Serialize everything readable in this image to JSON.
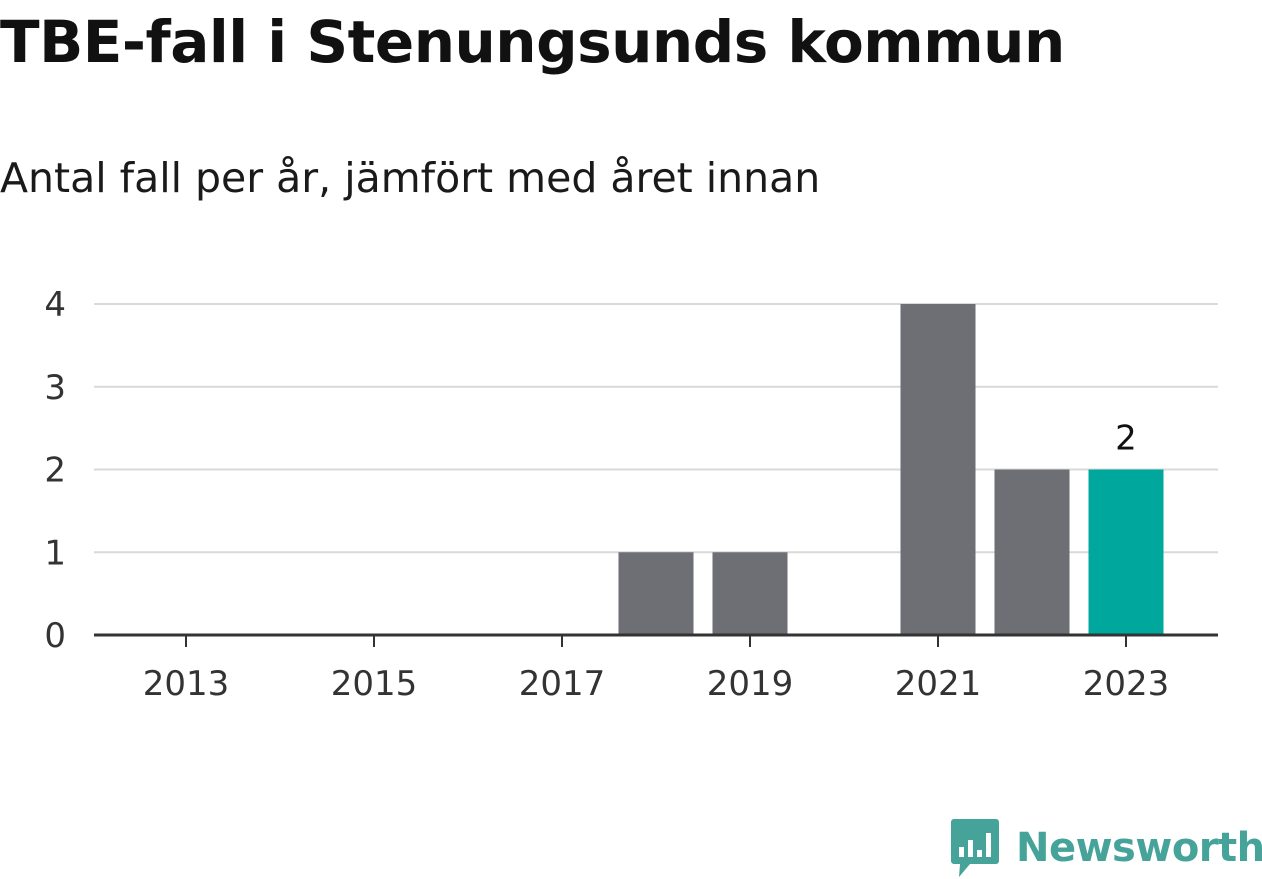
{
  "title": "TBE-fall i Stenungsunds kommun",
  "subtitle": "Antal fall per år, jämfört med året innan",
  "brand": {
    "name": "Newsworthy",
    "color": "#46a39a",
    "icon": "newsworthy-logo-icon"
  },
  "colors": {
    "bar": "#6e6e75",
    "highlight": "#00a79c",
    "grid": "#d9d9d9",
    "axis": "#333333"
  },
  "chart_data": {
    "type": "bar",
    "x": [
      2013,
      2014,
      2015,
      2016,
      2017,
      2018,
      2019,
      2020,
      2021,
      2022,
      2023
    ],
    "values": [
      0,
      0,
      0,
      0,
      0,
      1,
      1,
      0,
      4,
      2,
      2
    ],
    "highlight_index": 10,
    "data_labels": [
      {
        "x": 2023,
        "text": "2"
      }
    ],
    "xticks": [
      "2013",
      "2015",
      "2017",
      "2019",
      "2021",
      "2023"
    ],
    "yticks": [
      "0",
      "1",
      "2",
      "3",
      "4"
    ],
    "ylim": [
      0,
      4
    ],
    "grid": true,
    "legend": "none"
  }
}
